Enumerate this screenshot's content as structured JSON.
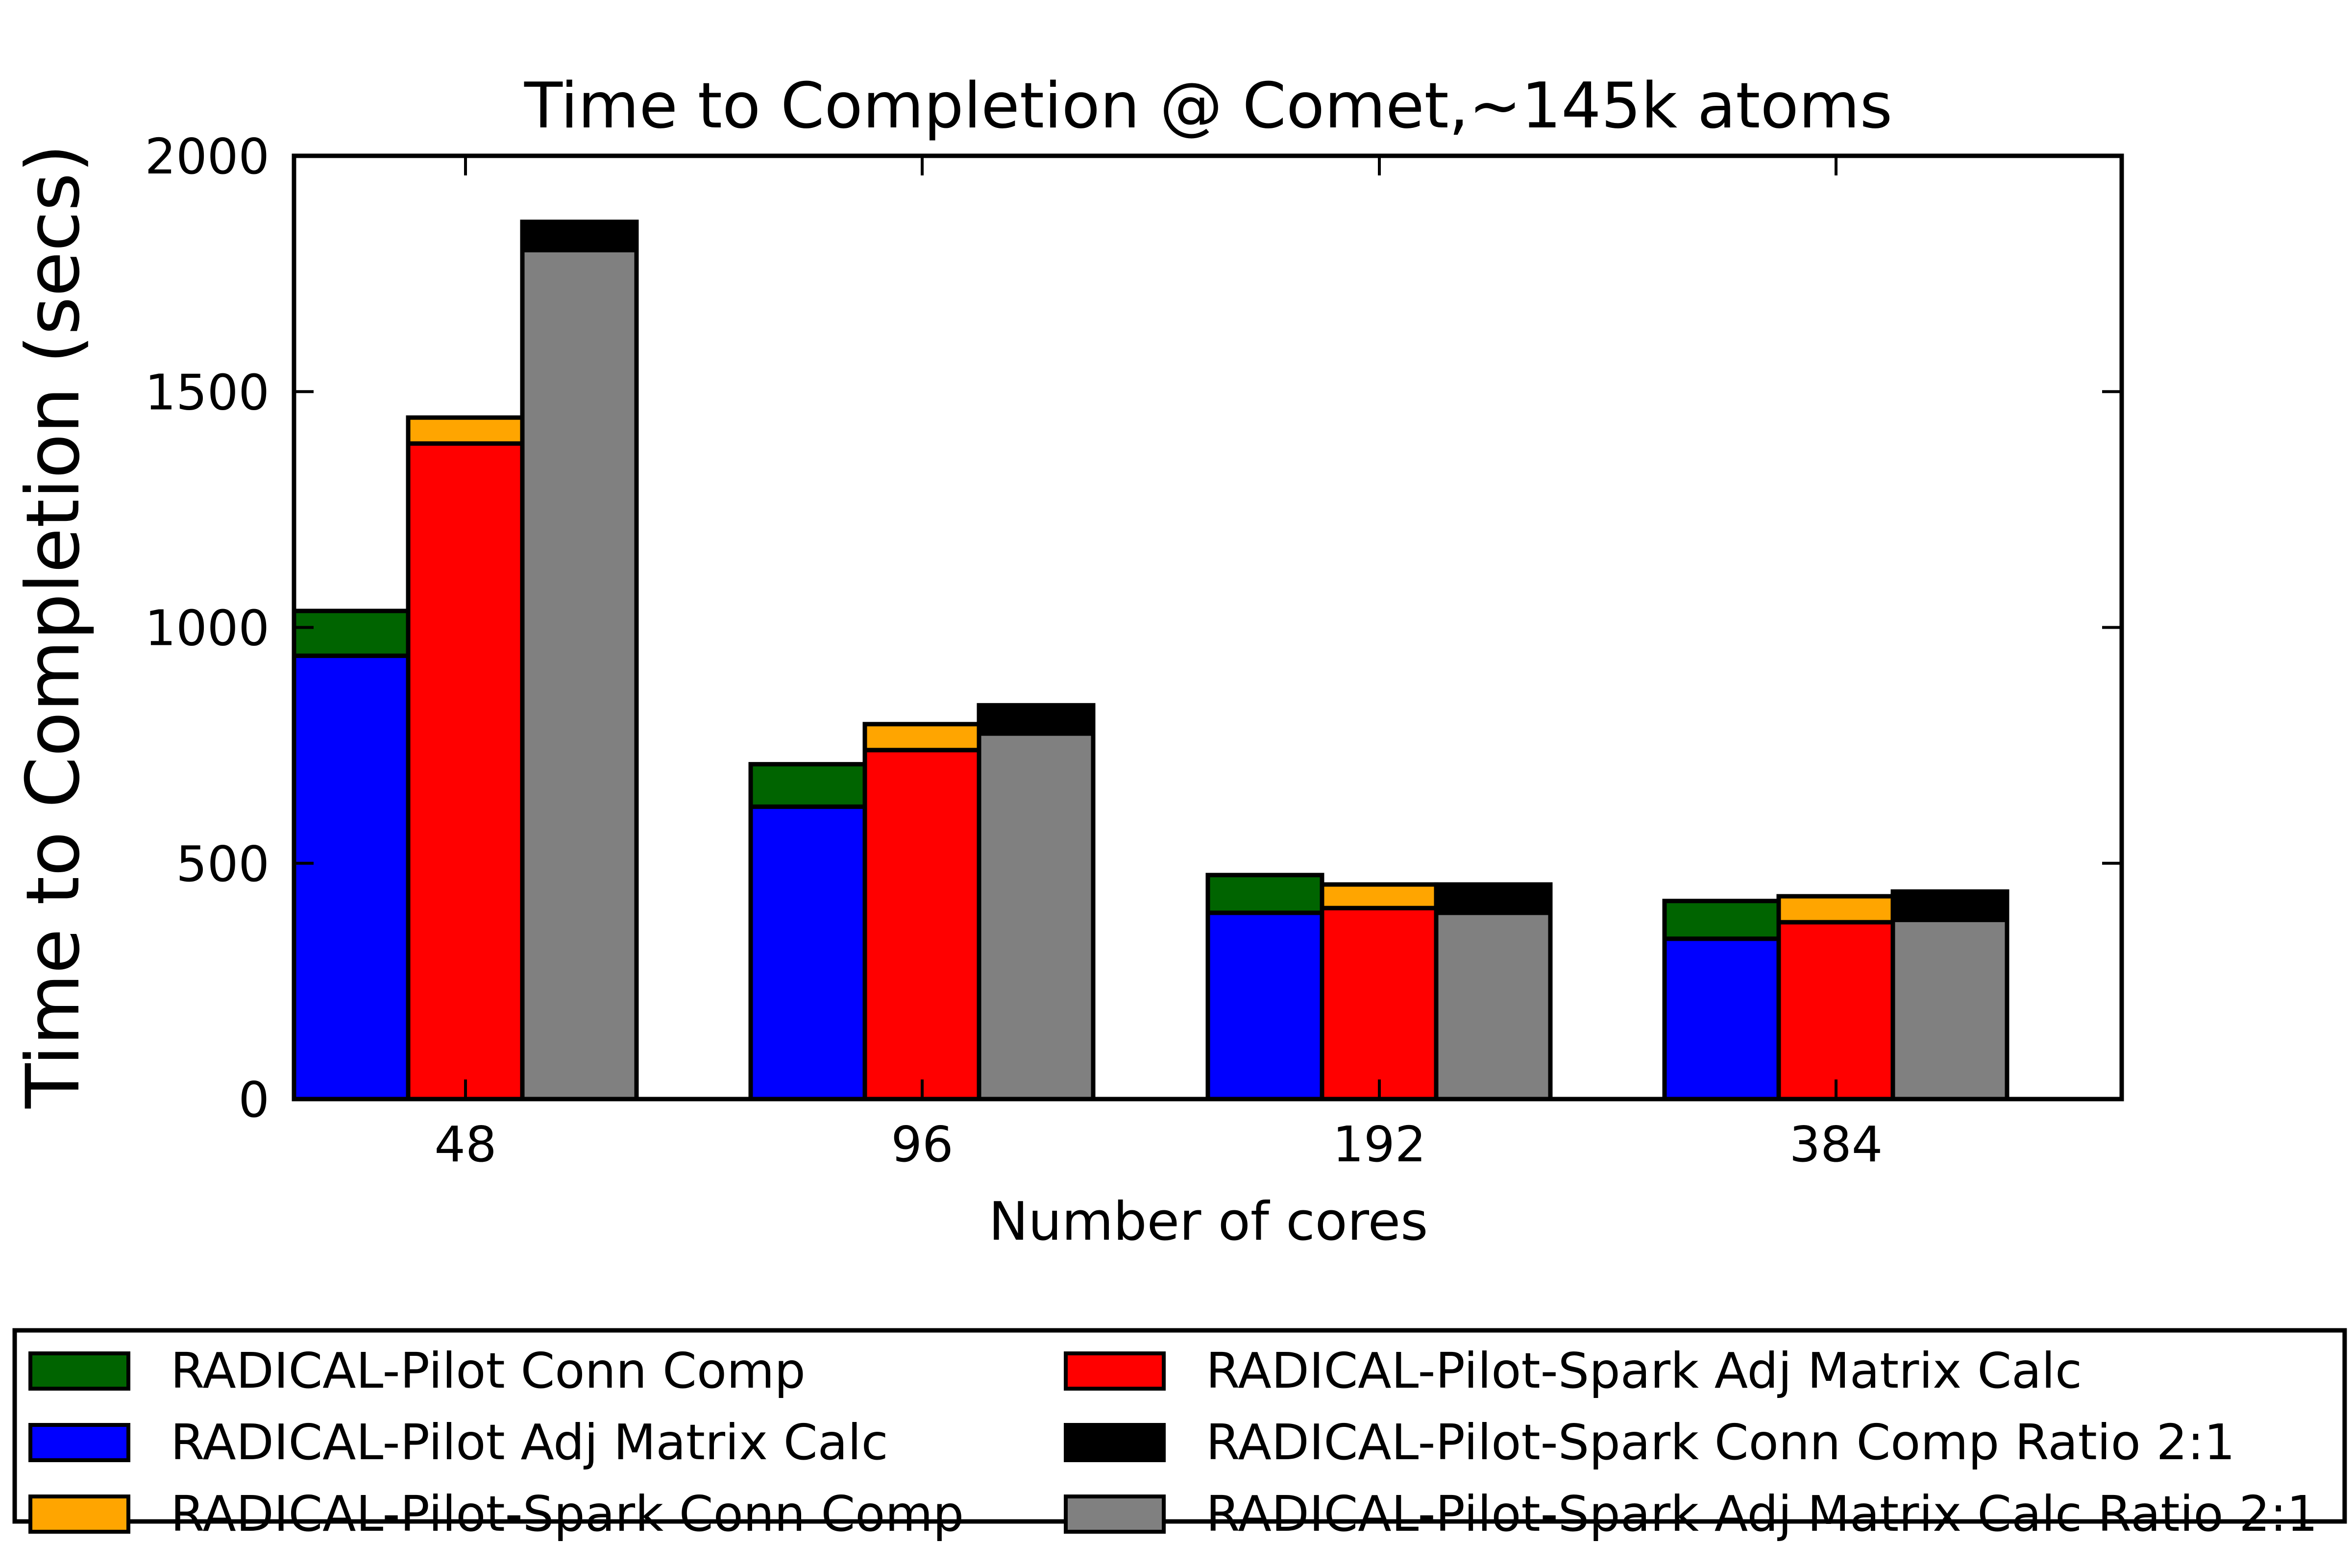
{
  "chart_data": {
    "type": "bar",
    "stacked": true,
    "title": "Time to Completion @ Comet,~145k atoms",
    "xlabel": "Number of cores",
    "ylabel": "Time to Completion (secs)",
    "ylim": [
      0,
      2000
    ],
    "yticks": [
      "0",
      "500",
      "1000",
      "1500",
      "2000"
    ],
    "categories": [
      "48",
      "96",
      "192",
      "384"
    ],
    "grid": false,
    "legend_position": "bottom",
    "groups": [
      {
        "name": "RADICAL-Pilot",
        "segments": [
          {
            "series": "RADICAL-Pilot Adj Matrix Calc",
            "values": [
              940,
              620,
              395,
              340
            ]
          },
          {
            "series": "RADICAL-Pilot Conn Comp",
            "values": [
              95,
              90,
              80,
              80
            ]
          }
        ]
      },
      {
        "name": "RADICAL-Pilot-Spark",
        "segments": [
          {
            "series": "RADICAL-Pilot-Spark Adj Matrix Calc",
            "values": [
              1390,
              740,
              405,
              375
            ]
          },
          {
            "series": "RADICAL-Pilot-Spark Conn Comp",
            "values": [
              55,
              55,
              50,
              55
            ]
          }
        ]
      },
      {
        "name": "RADICAL-Pilot-Spark Ratio 2:1",
        "segments": [
          {
            "series": "RADICAL-Pilot-Spark Adj Matrix Calc Ratio 2:1",
            "values": [
              1800,
              775,
              395,
              380
            ]
          },
          {
            "series": "RADICAL-Pilot-Spark Conn Comp Ratio 2:1",
            "values": [
              60,
              60,
              60,
              60
            ]
          }
        ]
      }
    ],
    "series_colors": {
      "RADICAL-Pilot Conn Comp": "#006400",
      "RADICAL-Pilot Adj Matrix Calc": "#0000ff",
      "RADICAL-Pilot-Spark Conn Comp": "#ffa500",
      "RADICAL-Pilot-Spark Adj Matrix Calc": "#ff0000",
      "RADICAL-Pilot-Spark Conn Comp Ratio 2:1": "#000000",
      "RADICAL-Pilot-Spark Adj Matrix Calc Ratio 2:1": "#808080"
    },
    "legend": [
      "RADICAL-Pilot Conn Comp",
      "RADICAL-Pilot Adj Matrix Calc",
      "RADICAL-Pilot-Spark Conn Comp",
      "RADICAL-Pilot-Spark Adj Matrix Calc",
      "RADICAL-Pilot-Spark Conn Comp Ratio 2:1",
      "RADICAL-Pilot-Spark Adj Matrix Calc Ratio 2:1"
    ]
  }
}
